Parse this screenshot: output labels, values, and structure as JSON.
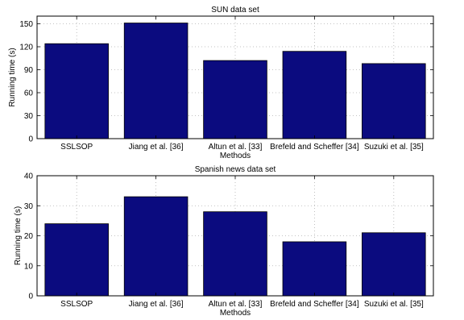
{
  "colors": {
    "bar": "#0b0b7f",
    "axis": "#000000",
    "grid": "#b0b0b0"
  },
  "chart_data": [
    {
      "type": "bar",
      "title": "SUN data set",
      "xlabel": "Methods",
      "ylabel": "Running time (s)",
      "categories": [
        "SSLSOP",
        "Jiang et al. [36]",
        "Altun et al. [33]",
        "Brefeld and Scheffer [34]",
        "Suzuki et al. [35]"
      ],
      "values": [
        124,
        151,
        102,
        114,
        98
      ],
      "ylim": [
        0,
        160
      ],
      "yticks": [
        0,
        30,
        60,
        90,
        120,
        150
      ],
      "grid": true,
      "legend": "none"
    },
    {
      "type": "bar",
      "title": "Spanish news data set",
      "xlabel": "Methods",
      "ylabel": "Running time (s)",
      "categories": [
        "SSLSOP",
        "Jiang et al. [36]",
        "Altun et al. [33]",
        "Brefeld and Scheffer [34]",
        "Suzuki et al. [35]"
      ],
      "values": [
        24,
        33,
        28,
        18,
        21
      ],
      "ylim": [
        0,
        40
      ],
      "yticks": [
        0,
        10,
        20,
        30,
        40
      ],
      "grid": true,
      "legend": "none"
    }
  ]
}
